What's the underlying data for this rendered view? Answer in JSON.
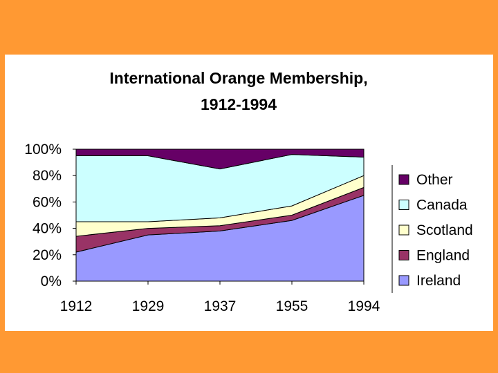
{
  "chart_data": {
    "type": "area",
    "stacked": "percent",
    "title": "International Orange Membership,",
    "subtitle": "1912-1994",
    "categories": [
      "1912",
      "1929",
      "1937",
      "1955",
      "1994"
    ],
    "y_ticks": [
      "100%",
      "80%",
      "60%",
      "40%",
      "20%",
      "0%"
    ],
    "ylim": [
      0,
      100
    ],
    "series": [
      {
        "name": "Ireland",
        "color": "#9999FF",
        "values": [
          22,
          35,
          38,
          46,
          65
        ]
      },
      {
        "name": "England",
        "color": "#993366",
        "values": [
          12,
          5,
          4,
          4,
          6
        ]
      },
      {
        "name": "Scotland",
        "color": "#FFFFCC",
        "values": [
          11,
          5,
          6,
          7,
          9
        ]
      },
      {
        "name": "Canada",
        "color": "#CCFFFF",
        "values": [
          50,
          50,
          37,
          39,
          14
        ]
      },
      {
        "name": "Other",
        "color": "#660066",
        "values": [
          5,
          5,
          15,
          4,
          6
        ]
      }
    ],
    "legend_order": [
      "Other",
      "Canada",
      "Scotland",
      "England",
      "Ireland"
    ],
    "legend_position": "right",
    "grid": false
  }
}
